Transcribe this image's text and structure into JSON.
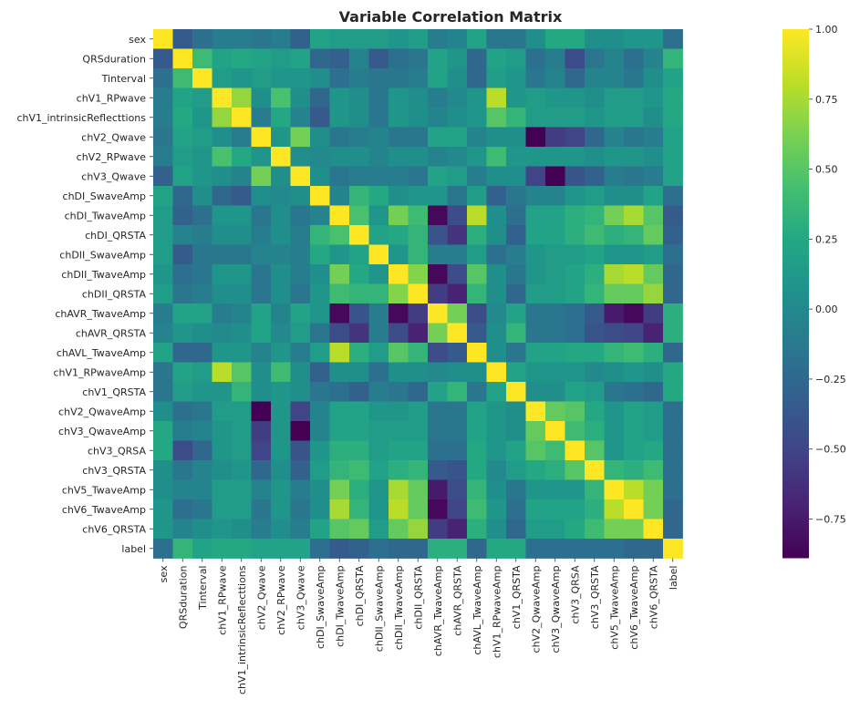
{
  "chart_data": {
    "type": "heatmap",
    "title": "Variable Correlation Matrix",
    "xlabel": "",
    "ylabel": "",
    "colormap": "viridis",
    "vmin": -0.89,
    "vmax": 1.0,
    "colorbar_ticks": [
      "1.00",
      "0.75",
      "0.50",
      "0.25",
      "0.00",
      "−0.25",
      "−0.50",
      "−0.75"
    ],
    "colorbar_tick_values": [
      1.0,
      0.75,
      0.5,
      0.25,
      0.0,
      -0.25,
      -0.5,
      -0.75
    ],
    "labels": [
      "sex",
      "QRSduration",
      "Tinterval",
      "chV1_RPwave",
      "chV1_intrinsicReflecttions",
      "chV2_Qwave",
      "chV2_RPwave",
      "chV3_Qwave",
      "chDI_SwaveAmp",
      "chDI_TwaveAmp",
      "chDI_QRSTA",
      "chDII_SwaveAmp",
      "chDII_TwaveAmp",
      "chDII_QRSTA",
      "chAVR_TwaveAmp",
      "chAVR_QRSTA",
      "chAVL_TwaveAmp",
      "chV1_RPwaveAmp",
      "chV1_QRSTA",
      "chV2_QwaveAmp",
      "chV3_QwaveAmp",
      "chV3_QRSA",
      "chV3_QRSTA",
      "chV5_TwaveAmp",
      "chV6_TwaveAmp",
      "chV6_QRSTA",
      "label"
    ],
    "matrix": [
      [
        1.0,
        -0.35,
        -0.2,
        -0.1,
        -0.1,
        -0.15,
        -0.1,
        -0.3,
        0.2,
        0.15,
        0.15,
        0.15,
        0.1,
        0.15,
        -0.1,
        -0.05,
        0.2,
        -0.15,
        -0.15,
        0.05,
        0.25,
        0.25,
        0.05,
        0.05,
        0.1,
        0.1,
        -0.2
      ],
      [
        -0.35,
        1.0,
        0.4,
        0.2,
        0.25,
        0.2,
        0.15,
        0.2,
        -0.25,
        -0.3,
        -0.05,
        -0.35,
        -0.2,
        -0.15,
        0.2,
        0.1,
        -0.25,
        0.2,
        0.15,
        -0.2,
        -0.1,
        -0.45,
        -0.15,
        -0.05,
        -0.2,
        -0.05,
        0.35
      ],
      [
        -0.2,
        0.4,
        1.0,
        0.15,
        0.1,
        0.15,
        0.1,
        0.1,
        0.05,
        -0.2,
        -0.1,
        -0.15,
        -0.15,
        -0.1,
        0.2,
        0.05,
        -0.25,
        0.15,
        0.1,
        -0.15,
        -0.05,
        -0.25,
        -0.05,
        -0.05,
        -0.15,
        0.05,
        0.2
      ],
      [
        -0.1,
        0.2,
        0.15,
        1.0,
        0.7,
        0.05,
        0.45,
        0.05,
        -0.25,
        0.1,
        0.05,
        -0.15,
        0.1,
        0.05,
        -0.1,
        0.0,
        0.1,
        0.8,
        0.1,
        0.15,
        0.1,
        0.1,
        0.05,
        0.15,
        0.15,
        0.1,
        0.25
      ],
      [
        -0.1,
        0.25,
        0.1,
        0.7,
        1.0,
        -0.1,
        0.25,
        -0.05,
        -0.35,
        0.1,
        0.05,
        -0.15,
        0.1,
        0.05,
        -0.05,
        0.05,
        0.1,
        0.5,
        0.35,
        0.15,
        0.15,
        0.15,
        0.1,
        0.15,
        0.15,
        0.05,
        0.25
      ],
      [
        -0.15,
        0.2,
        0.15,
        0.05,
        -0.1,
        1.0,
        0.1,
        0.6,
        0.05,
        -0.15,
        -0.1,
        -0.05,
        -0.15,
        -0.15,
        0.2,
        0.2,
        -0.05,
        0.05,
        0.05,
        -0.89,
        -0.55,
        -0.5,
        -0.25,
        -0.05,
        -0.15,
        -0.1,
        0.2
      ],
      [
        -0.1,
        0.15,
        0.1,
        0.45,
        0.25,
        0.1,
        1.0,
        0.05,
        0.0,
        0.05,
        0.05,
        -0.05,
        0.05,
        0.05,
        -0.05,
        0.0,
        0.1,
        0.4,
        0.1,
        0.1,
        0.1,
        0.1,
        0.05,
        0.1,
        0.1,
        0.05,
        0.2
      ],
      [
        -0.3,
        0.2,
        0.1,
        0.05,
        -0.05,
        0.6,
        0.05,
        1.0,
        0.05,
        -0.15,
        -0.1,
        -0.1,
        -0.1,
        -0.15,
        0.2,
        0.15,
        -0.1,
        0.05,
        0.05,
        -0.5,
        -0.89,
        -0.4,
        -0.3,
        -0.1,
        -0.15,
        -0.1,
        0.2
      ],
      [
        0.2,
        -0.25,
        0.05,
        -0.25,
        -0.35,
        0.05,
        0.0,
        0.05,
        1.0,
        -0.05,
        0.35,
        0.25,
        0.05,
        0.1,
        0.1,
        -0.15,
        0.15,
        -0.3,
        -0.15,
        -0.05,
        -0.05,
        0.1,
        0.15,
        0.05,
        0.05,
        0.2,
        -0.2
      ],
      [
        0.15,
        -0.3,
        -0.2,
        0.1,
        0.1,
        -0.15,
        0.05,
        -0.15,
        -0.05,
        1.0,
        0.45,
        0.1,
        0.6,
        0.4,
        -0.85,
        -0.45,
        0.8,
        0.05,
        -0.2,
        0.2,
        0.2,
        0.3,
        0.35,
        0.6,
        0.75,
        0.5,
        -0.35
      ],
      [
        0.15,
        -0.05,
        -0.1,
        0.05,
        0.05,
        -0.1,
        0.05,
        -0.1,
        0.35,
        0.45,
        1.0,
        0.2,
        0.25,
        0.35,
        -0.4,
        -0.6,
        0.3,
        0.05,
        -0.3,
        0.2,
        0.2,
        0.3,
        0.4,
        0.3,
        0.35,
        0.55,
        -0.3
      ],
      [
        0.15,
        -0.35,
        -0.15,
        -0.15,
        -0.15,
        -0.05,
        -0.05,
        -0.1,
        0.25,
        0.1,
        0.2,
        1.0,
        0.1,
        0.35,
        -0.1,
        -0.1,
        0.15,
        -0.2,
        -0.1,
        0.1,
        0.15,
        0.15,
        0.2,
        0.1,
        0.1,
        0.15,
        -0.2
      ],
      [
        0.1,
        -0.2,
        -0.15,
        0.1,
        0.1,
        -0.15,
        0.05,
        -0.1,
        0.05,
        0.6,
        0.25,
        0.1,
        1.0,
        0.65,
        -0.85,
        -0.45,
        0.5,
        0.05,
        -0.15,
        0.1,
        0.15,
        0.2,
        0.3,
        0.75,
        0.8,
        0.55,
        -0.25
      ],
      [
        0.15,
        -0.15,
        -0.1,
        0.05,
        0.05,
        -0.15,
        0.05,
        -0.15,
        0.1,
        0.4,
        0.35,
        0.35,
        0.65,
        1.0,
        -0.55,
        -0.7,
        0.35,
        0.05,
        -0.25,
        0.15,
        0.15,
        0.2,
        0.35,
        0.55,
        0.55,
        0.7,
        -0.25
      ],
      [
        -0.1,
        0.2,
        0.2,
        -0.1,
        -0.05,
        0.2,
        -0.05,
        0.2,
        0.1,
        -0.85,
        -0.4,
        -0.1,
        -0.85,
        -0.55,
        1.0,
        0.6,
        -0.45,
        0.0,
        0.2,
        -0.15,
        -0.15,
        -0.2,
        -0.35,
        -0.75,
        -0.85,
        -0.55,
        0.3
      ],
      [
        -0.05,
        0.1,
        0.05,
        0.0,
        0.05,
        0.2,
        0.0,
        0.15,
        -0.15,
        -0.45,
        -0.6,
        -0.1,
        -0.45,
        -0.7,
        0.6,
        1.0,
        -0.35,
        0.05,
        0.35,
        -0.15,
        -0.15,
        -0.2,
        -0.4,
        -0.45,
        -0.5,
        -0.7,
        0.3
      ],
      [
        0.2,
        -0.25,
        -0.25,
        0.1,
        0.1,
        -0.05,
        0.1,
        -0.1,
        0.15,
        0.8,
        0.3,
        0.15,
        0.5,
        0.35,
        -0.45,
        -0.35,
        1.0,
        0.05,
        -0.15,
        0.2,
        0.2,
        0.25,
        0.25,
        0.35,
        0.4,
        0.3,
        -0.25
      ],
      [
        -0.15,
        0.2,
        0.15,
        0.8,
        0.5,
        0.05,
        0.4,
        0.05,
        -0.3,
        0.05,
        0.05,
        -0.2,
        0.05,
        0.05,
        0.0,
        0.05,
        0.05,
        1.0,
        0.2,
        0.1,
        0.1,
        0.1,
        0.0,
        0.05,
        0.1,
        0.05,
        0.25
      ],
      [
        -0.15,
        0.15,
        0.1,
        0.1,
        0.35,
        0.05,
        0.1,
        0.05,
        -0.15,
        -0.2,
        -0.3,
        -0.1,
        -0.15,
        -0.25,
        0.2,
        0.35,
        -0.15,
        0.2,
        1.0,
        0.05,
        0.05,
        0.2,
        0.15,
        -0.15,
        -0.2,
        -0.25,
        0.25
      ],
      [
        0.05,
        -0.2,
        -0.15,
        0.15,
        0.15,
        -0.89,
        0.1,
        -0.5,
        -0.05,
        0.2,
        0.2,
        0.1,
        0.1,
        0.15,
        -0.15,
        -0.15,
        0.2,
        0.1,
        0.05,
        1.0,
        0.55,
        0.5,
        0.25,
        0.1,
        0.2,
        0.15,
        -0.2
      ],
      [
        0.25,
        -0.1,
        -0.05,
        0.1,
        0.15,
        -0.55,
        0.1,
        -0.89,
        -0.05,
        0.2,
        0.2,
        0.15,
        0.15,
        0.15,
        -0.15,
        -0.15,
        0.2,
        0.1,
        0.05,
        0.55,
        1.0,
        0.4,
        0.3,
        0.1,
        0.2,
        0.15,
        -0.2
      ],
      [
        0.25,
        -0.45,
        -0.25,
        0.1,
        0.15,
        -0.5,
        0.1,
        -0.4,
        0.1,
        0.3,
        0.3,
        0.15,
        0.2,
        0.2,
        -0.2,
        -0.2,
        0.25,
        0.1,
        0.2,
        0.5,
        0.4,
        1.0,
        0.5,
        0.1,
        0.2,
        0.25,
        -0.2
      ],
      [
        0.05,
        -0.15,
        -0.05,
        0.05,
        0.1,
        -0.25,
        0.05,
        -0.3,
        0.15,
        0.35,
        0.4,
        0.2,
        0.3,
        0.35,
        -0.35,
        -0.4,
        0.25,
        0.0,
        0.15,
        0.25,
        0.3,
        0.5,
        1.0,
        0.35,
        0.3,
        0.4,
        -0.2
      ],
      [
        0.05,
        -0.05,
        -0.05,
        0.15,
        0.15,
        -0.05,
        0.1,
        -0.1,
        0.05,
        0.6,
        0.3,
        0.1,
        0.75,
        0.55,
        -0.75,
        -0.45,
        0.35,
        0.05,
        -0.15,
        0.1,
        0.1,
        0.1,
        0.35,
        1.0,
        0.8,
        0.6,
        -0.2
      ],
      [
        0.1,
        -0.2,
        -0.15,
        0.15,
        0.15,
        -0.15,
        0.1,
        -0.15,
        0.05,
        0.75,
        0.35,
        0.1,
        0.8,
        0.55,
        -0.85,
        -0.5,
        0.4,
        0.1,
        -0.2,
        0.2,
        0.2,
        0.2,
        0.3,
        0.8,
        1.0,
        0.6,
        -0.25
      ],
      [
        0.1,
        -0.05,
        0.05,
        0.1,
        0.05,
        -0.1,
        0.05,
        -0.1,
        0.2,
        0.5,
        0.55,
        0.15,
        0.55,
        0.7,
        -0.55,
        -0.7,
        0.3,
        0.05,
        -0.25,
        0.15,
        0.15,
        0.25,
        0.4,
        0.6,
        0.6,
        1.0,
        -0.25
      ],
      [
        -0.2,
        0.35,
        0.2,
        0.25,
        0.25,
        0.2,
        0.2,
        0.2,
        -0.2,
        -0.35,
        -0.3,
        -0.2,
        -0.25,
        -0.25,
        0.3,
        0.3,
        -0.25,
        0.25,
        0.25,
        -0.2,
        -0.2,
        -0.2,
        -0.2,
        -0.2,
        -0.25,
        -0.25,
        1.0
      ]
    ]
  }
}
